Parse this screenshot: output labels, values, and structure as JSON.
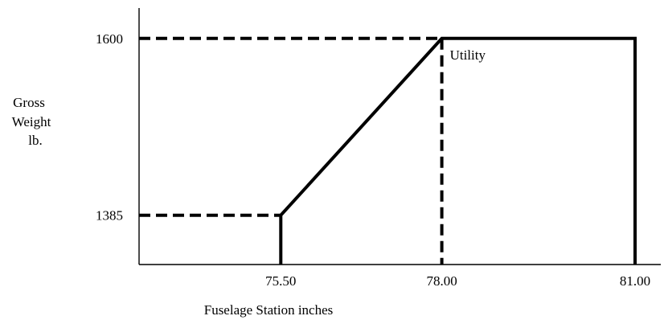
{
  "chart_data": {
    "type": "line",
    "title": "",
    "xlabel": "Fuselage Station inches",
    "ylabel_lines": [
      "Gross",
      "Weight",
      "lb."
    ],
    "x_ticks": [
      75.5,
      78.0,
      81.0
    ],
    "x_tick_labels": [
      "75.50",
      "78.00",
      "81.00"
    ],
    "y_ticks": [
      1385,
      1600
    ],
    "y_tick_labels": [
      "1385",
      "1600"
    ],
    "xlim": [
      73.3,
      81.4
    ],
    "ylim": [
      1325,
      1637
    ],
    "grid": false,
    "series": [
      {
        "style": "solid",
        "points": [
          [
            75.5,
            1325
          ],
          [
            75.5,
            1385
          ],
          [
            78.0,
            1600
          ],
          [
            81.0,
            1600
          ],
          [
            81.0,
            1325
          ]
        ]
      }
    ],
    "reference_lines": [
      {
        "style": "dashed",
        "points": [
          [
            73.3,
            1600
          ],
          [
            78.0,
            1600
          ]
        ]
      },
      {
        "style": "dashed",
        "points": [
          [
            73.3,
            1385
          ],
          [
            75.5,
            1385
          ]
        ]
      },
      {
        "style": "dashed",
        "points": [
          [
            78.0,
            1600
          ],
          [
            78.0,
            1325
          ]
        ]
      }
    ],
    "annotations": [
      {
        "text": "Utility",
        "x": 78.0,
        "y": 1600
      }
    ],
    "colors": {
      "line": "#000000",
      "axis": "#000000"
    }
  }
}
